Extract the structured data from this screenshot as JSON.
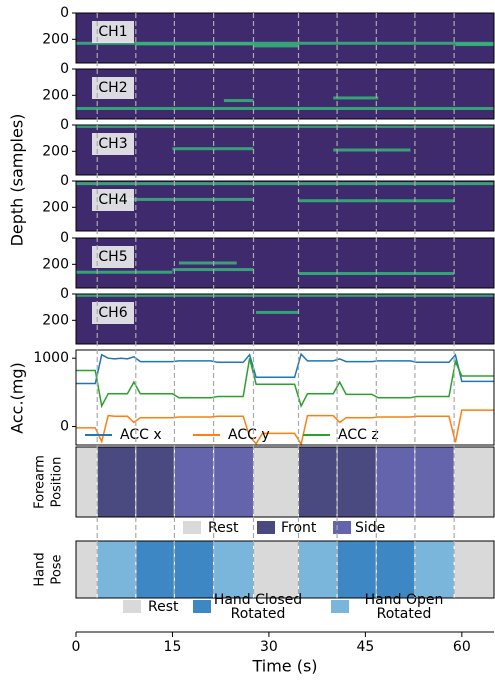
{
  "chart_data": {
    "type": "multi-panel",
    "xlabel": "Time (s)",
    "xlim": [
      0,
      65
    ],
    "xticks": [
      0,
      15,
      30,
      45,
      60
    ],
    "transitions": [
      3.3,
      9.3,
      15.3,
      21.4,
      27.6,
      34.6,
      40.6,
      46.7,
      52.7,
      58.8
    ],
    "heatmap": {
      "ylabel": "Depth (samples)",
      "ylim": [
        0,
        380
      ],
      "yticks": [
        0,
        200
      ],
      "background": "#402a6e",
      "band_color": "#35b779",
      "channels": [
        {
          "name": "CH1",
          "bands": [
            [
              0,
              65,
              230
            ],
            [
              27.6,
              34.6,
              250
            ],
            [
              59,
              65,
              240
            ],
            [
              9.3,
              27.6,
              235
            ]
          ]
        },
        {
          "name": "CH2",
          "bands": [
            [
              40,
              47,
              220
            ],
            [
              23,
              27.6,
              240
            ],
            [
              0,
              65,
              300
            ]
          ]
        },
        {
          "name": "CH3",
          "bands": [
            [
              0,
              65,
              10
            ],
            [
              15,
              27.6,
              180
            ],
            [
              40,
              52,
              190
            ]
          ]
        },
        {
          "name": "CH4",
          "bands": [
            [
              0,
              65,
              20
            ],
            [
              3.3,
              27.6,
              140
            ],
            [
              34.6,
              58.8,
              150
            ]
          ]
        },
        {
          "name": "CH5",
          "bands": [
            [
              0,
              15,
              260
            ],
            [
              15,
              27.6,
              240
            ],
            [
              34.6,
              58.8,
              270
            ],
            [
              16,
              25,
              190
            ]
          ]
        },
        {
          "name": "CH6",
          "bands": [
            [
              0,
              65,
              10
            ],
            [
              28,
              34.6,
              140
            ]
          ]
        }
      ]
    },
    "accel": {
      "ylabel": "Acc.(mg)",
      "ylim": [
        -270,
        1120
      ],
      "yticks": [
        0,
        1000
      ],
      "x": [
        0,
        1,
        2,
        3,
        4,
        5,
        6,
        7,
        8,
        9,
        10,
        11,
        12,
        13,
        14,
        15,
        16,
        17,
        18,
        19,
        20,
        21,
        22,
        23,
        24,
        25,
        26,
        27,
        28,
        29,
        30,
        31,
        32,
        33,
        34,
        35,
        36,
        37,
        38,
        39,
        40,
        41,
        42,
        43,
        44,
        45,
        46,
        47,
        48,
        49,
        50,
        51,
        52,
        53,
        54,
        55,
        56,
        57,
        58,
        59,
        60,
        61,
        62,
        63,
        64,
        65
      ],
      "series": [
        {
          "name": "ACC x",
          "color": "#1f77b4",
          "values": [
            630,
            630,
            630,
            630,
            1050,
            1000,
            990,
            1000,
            990,
            1020,
            950,
            950,
            950,
            950,
            950,
            950,
            960,
            960,
            960,
            960,
            960,
            960,
            940,
            940,
            940,
            940,
            940,
            1050,
            720,
            720,
            720,
            720,
            720,
            720,
            720,
            1060,
            960,
            960,
            960,
            960,
            960,
            990,
            950,
            950,
            950,
            950,
            950,
            960,
            960,
            960,
            960,
            960,
            960,
            940,
            940,
            940,
            940,
            940,
            940,
            1050,
            660,
            660,
            660,
            660,
            660,
            660
          ]
        },
        {
          "name": "ACC y",
          "color": "#ff7f0e",
          "values": [
            -20,
            -20,
            -20,
            -20,
            -220,
            160,
            150,
            150,
            150,
            60,
            130,
            130,
            130,
            130,
            130,
            130,
            140,
            140,
            140,
            140,
            140,
            140,
            150,
            150,
            150,
            150,
            150,
            -150,
            -250,
            -100,
            -100,
            -100,
            -100,
            -100,
            -100,
            -260,
            160,
            160,
            160,
            160,
            160,
            60,
            130,
            130,
            130,
            130,
            130,
            140,
            140,
            140,
            140,
            140,
            140,
            150,
            150,
            150,
            150,
            150,
            150,
            -230,
            240,
            240,
            240,
            240,
            240,
            240
          ]
        },
        {
          "name": "ACC z",
          "color": "#2ca02c",
          "values": [
            820,
            820,
            820,
            820,
            300,
            480,
            480,
            480,
            480,
            650,
            480,
            480,
            480,
            480,
            480,
            480,
            420,
            420,
            420,
            420,
            420,
            420,
            440,
            440,
            440,
            440,
            440,
            1000,
            620,
            620,
            620,
            620,
            620,
            620,
            620,
            300,
            480,
            480,
            480,
            480,
            480,
            650,
            470,
            470,
            470,
            470,
            470,
            420,
            420,
            420,
            420,
            420,
            420,
            440,
            440,
            440,
            440,
            440,
            440,
            950,
            740,
            740,
            740,
            740,
            740,
            740
          ]
        }
      ]
    },
    "forearm": {
      "ylabel": [
        "Forearm",
        "Position"
      ],
      "series": [
        {
          "name": "Rest",
          "color": "#d9d9d9",
          "intervals": [
            [
              0,
              3.3
            ],
            [
              27.6,
              34.6
            ],
            [
              58.8,
              65
            ]
          ]
        },
        {
          "name": "Front",
          "color": "#4a4a80",
          "intervals": [
            [
              3.3,
              9.3
            ],
            [
              9.3,
              15.3
            ],
            [
              34.6,
              40.6
            ],
            [
              40.6,
              46.7
            ]
          ]
        },
        {
          "name": "Side",
          "color": "#6464ac",
          "intervals": [
            [
              15.3,
              21.4
            ],
            [
              21.4,
              27.6
            ],
            [
              46.7,
              52.7
            ],
            [
              52.7,
              58.8
            ]
          ]
        }
      ]
    },
    "hand": {
      "ylabel": [
        "Hand",
        "Pose"
      ],
      "series": [
        {
          "name": [
            "Rest"
          ],
          "color": "#d9d9d9",
          "intervals": [
            [
              0,
              3.3
            ],
            [
              27.6,
              34.6
            ],
            [
              58.8,
              65
            ]
          ]
        },
        {
          "name": [
            "Hand Closed",
            "Rotated"
          ],
          "color": "#3d88c4",
          "intervals": [
            [
              9.3,
              15.3
            ],
            [
              15.3,
              21.4
            ],
            [
              40.6,
              46.7
            ],
            [
              46.7,
              52.7
            ]
          ]
        },
        {
          "name": [
            "Hand Open",
            "Rotated"
          ],
          "color": "#7ab6dc",
          "intervals": [
            [
              3.3,
              9.3
            ],
            [
              21.4,
              27.6
            ],
            [
              34.6,
              40.6
            ],
            [
              52.7,
              58.8
            ]
          ]
        }
      ]
    }
  }
}
